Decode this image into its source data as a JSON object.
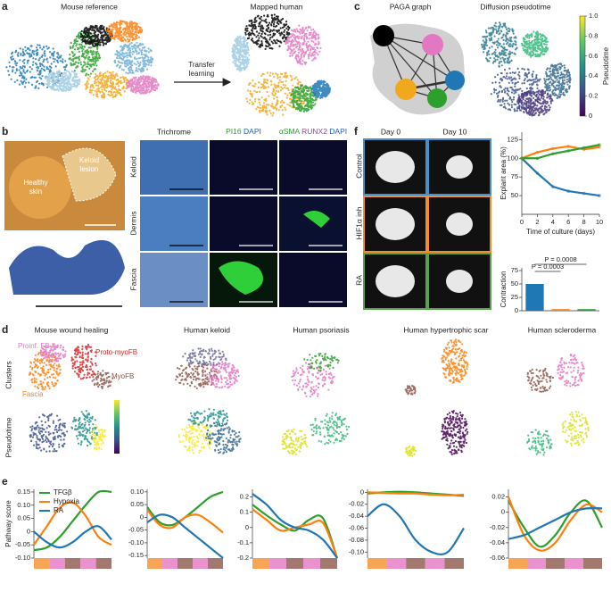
{
  "figure": {
    "panel_a": {
      "label": "a",
      "left_title": "Mouse reference",
      "right_title": "Mapped human",
      "arrow_label_1": "Transfer",
      "arrow_label_2": "learning"
    },
    "panel_b": {
      "label": "b",
      "photo_labels": [
        "Healthy",
        "skin",
        "Keloid",
        "lesion"
      ],
      "trichrome": "Trichrome",
      "stains": {
        "pi16": "PI16",
        "dapi": "DAPI",
        "asma": "αSMA",
        "runx2": "RUNX2"
      },
      "row_labels": [
        "Keloid",
        "Dermis",
        "Fascia"
      ]
    },
    "panel_c": {
      "label": "c",
      "left_title": "PAGA graph",
      "right_title": "Diffusion pseudotime"
    },
    "panel_f": {
      "label": "f",
      "column_titles": [
        "Day 0",
        "Day 10"
      ],
      "row_labels": [
        "Control",
        "HIF1α inh",
        "RA"
      ]
    },
    "panel_d": {
      "label": "d",
      "titles": [
        "Mouse wound healing",
        "Human keloid",
        "Human psoriasis",
        "Human hypertrophic scar",
        "Human scleroderma"
      ],
      "row_labels": [
        "Clusters",
        "Pseudotime"
      ],
      "cluster_labels": [
        "Proinf. FB",
        "Proto-myoFB",
        "MyoFB",
        "Fascia"
      ]
    },
    "panel_e": {
      "label": "e"
    }
  },
  "chart_data": [
    {
      "type": "colorbar",
      "title": "Pseudotime",
      "ylim": [
        0,
        1
      ],
      "yticks": [
        0,
        0.2,
        0.4,
        0.6,
        0.8,
        {
          "value": 1,
          "label": "1.0"
        }
      ]
    },
    {
      "type": "line",
      "ylabel": "Explant area (%)",
      "xlabel": "Time of culture (days)",
      "x": [
        0,
        2,
        4,
        6,
        8,
        10
      ],
      "xlim": [
        0,
        10
      ],
      "xticks": [
        0,
        2,
        4,
        6,
        8,
        10
      ],
      "ylim": [
        25,
        135
      ],
      "yticks": [
        50,
        75,
        100,
        125
      ],
      "series": [
        {
          "color": "#1f77b4",
          "values": [
            100,
            80,
            62,
            56,
            53,
            50
          ]
        },
        {
          "color": "#ff7f0e",
          "values": [
            100,
            108,
            113,
            116,
            112,
            115
          ]
        },
        {
          "color": "#2ca02c",
          "values": [
            100,
            100,
            106,
            110,
            114,
            118
          ]
        }
      ]
    },
    {
      "type": "bar",
      "ylabel": "Contraction",
      "categories": [
        null,
        null,
        null
      ],
      "values": [
        50,
        3,
        3
      ],
      "colors": [
        "#1f77b4",
        "#ff7f0e",
        "#2ca02c"
      ],
      "ylim": [
        0,
        80
      ],
      "yticks": [
        0,
        25,
        50,
        75
      ],
      "annotations": [
        "P = 0.0008",
        "P = 0.0003"
      ]
    },
    {
      "type": "line",
      "ylabel": "Pathway score",
      "ylim": [
        -0.1,
        0.16
      ],
      "yticks": [
        {
          "value": -0.1,
          "label": "-0.10"
        },
        -0.05,
        0,
        0.05,
        {
          "value": 0.1,
          "label": "0.10"
        },
        0.15
      ],
      "series": [
        {
          "name": "TFGβ",
          "color": "#2ca02c",
          "values": [
            -0.07,
            -0.06,
            -0.02,
            0.04,
            0.1,
            0.15,
            0.15
          ]
        },
        {
          "name": "Hypoxia",
          "color": "#ff7f0e",
          "values": [
            -0.05,
            0.02,
            0.09,
            0.11,
            0.06,
            -0.02,
            -0.05
          ]
        },
        {
          "name": "RA",
          "color": "#1f77b4",
          "values": [
            0,
            -0.04,
            -0.06,
            -0.04,
            0,
            0.02,
            -0.03
          ]
        }
      ]
    },
    {
      "type": "line",
      "ylim": [
        -0.16,
        0.11
      ],
      "yticks": [
        -0.15,
        {
          "value": -0.1,
          "label": "-0.10"
        },
        -0.05,
        0,
        0.05,
        {
          "value": 0.1,
          "label": "0.10"
        }
      ],
      "series": [
        {
          "color": "#2ca02c",
          "values": [
            0.04,
            -0.02,
            -0.03,
            0,
            0.04,
            0.08,
            0.1
          ]
        },
        {
          "color": "#ff7f0e",
          "values": [
            0.03,
            -0.03,
            -0.04,
            0,
            0.01,
            -0.02,
            -0.06
          ]
        },
        {
          "color": "#1f77b4",
          "values": [
            -0.02,
            0.01,
            0,
            -0.04,
            -0.08,
            -0.12,
            -0.16
          ]
        }
      ]
    },
    {
      "type": "line",
      "ylim": [
        -0.2,
        0.25
      ],
      "yticks": [
        -0.2,
        -0.1,
        0,
        0.1,
        0.2
      ],
      "series": [
        {
          "color": "#2ca02c",
          "values": [
            0.15,
            0.08,
            0.02,
            -0.02,
            0.05,
            0.06,
            -0.2
          ]
        },
        {
          "color": "#ff7f0e",
          "values": [
            0.12,
            0.05,
            -0.02,
            0,
            0.02,
            0.03,
            -0.2
          ]
        },
        {
          "color": "#1f77b4",
          "values": [
            0.22,
            0.15,
            0.05,
            0,
            -0.02,
            -0.08,
            -0.2
          ]
        }
      ]
    },
    {
      "type": "line",
      "ylim": [
        -0.11,
        0.005
      ],
      "yticks": [
        {
          "value": -0.1,
          "label": "-0.10"
        },
        -0.08,
        -0.06,
        -0.04,
        -0.02,
        0
      ],
      "series": [
        {
          "color": "#2ca02c",
          "values": [
            -0.002,
            0,
            0.001,
            0,
            -0.002,
            -0.004,
            -0.006
          ]
        },
        {
          "color": "#ff7f0e",
          "values": [
            0,
            -0.001,
            -0.002,
            -0.002,
            -0.004,
            -0.005,
            -0.004
          ]
        },
        {
          "color": "#1f77b4",
          "values": [
            -0.04,
            -0.02,
            -0.04,
            -0.08,
            -0.1,
            -0.1,
            -0.06
          ]
        }
      ]
    },
    {
      "type": "line",
      "ylim": [
        -0.06,
        0.03
      ],
      "yticks": [
        -0.06,
        -0.04,
        -0.02,
        0,
        0.02
      ],
      "series": [
        {
          "color": "#2ca02c",
          "values": [
            0.015,
            -0.02,
            -0.045,
            -0.03,
            0,
            0.015,
            -0.02
          ]
        },
        {
          "color": "#ff7f0e",
          "values": [
            0.02,
            -0.03,
            -0.05,
            -0.04,
            -0.01,
            0.01,
            0
          ]
        },
        {
          "color": "#1f77b4",
          "values": [
            -0.035,
            -0.03,
            -0.02,
            -0.01,
            0,
            0.005,
            0.005
          ]
        }
      ]
    }
  ]
}
